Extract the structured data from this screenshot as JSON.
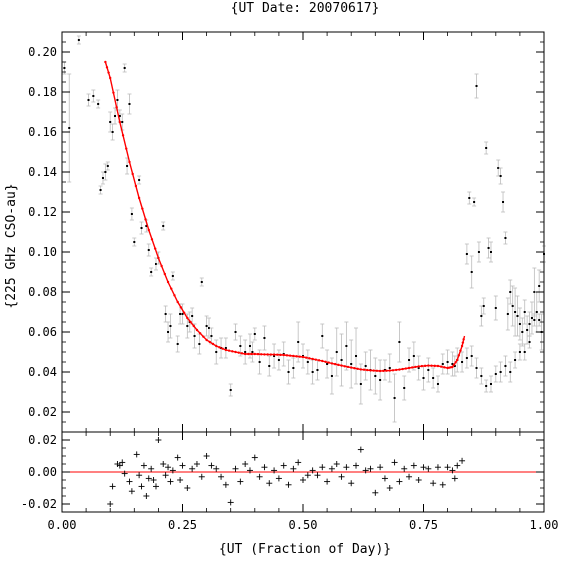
{
  "chart_data": [
    {
      "type": "scatter",
      "title": "{UT Date: 20070617}",
      "xlabel": "{UT (Fraction of Day)}",
      "ylabel": "{225 GHz CSO-au}",
      "xlim": [
        0.0,
        1.0
      ],
      "ylim": [
        0.01,
        0.21
      ],
      "xticks": [
        "0.00",
        "0.25",
        "0.50",
        "0.75",
        "1.00"
      ],
      "yticks": [
        "0.02",
        "0.04",
        "0.06",
        "0.08",
        "0.10",
        "0.12",
        "0.14",
        "0.16",
        "0.18",
        "0.20"
      ],
      "grid": false,
      "series": [
        {
          "kind": "points-with-errorbars",
          "color": "#000000",
          "errorbar_color": "#bbbbbb",
          "x": [
            0.005,
            0.015,
            0.035,
            0.055,
            0.065,
            0.075,
            0.08,
            0.085,
            0.09,
            0.095,
            0.1,
            0.105,
            0.11,
            0.115,
            0.12,
            0.125,
            0.13,
            0.135,
            0.14,
            0.145,
            0.15,
            0.16,
            0.165,
            0.175,
            0.18,
            0.185,
            0.195,
            0.2,
            0.21,
            0.215,
            0.22,
            0.225,
            0.23,
            0.24,
            0.245,
            0.25,
            0.26,
            0.265,
            0.27,
            0.275,
            0.285,
            0.29,
            0.3,
            0.305,
            0.31,
            0.32,
            0.33,
            0.34,
            0.35,
            0.36,
            0.37,
            0.38,
            0.39,
            0.395,
            0.4,
            0.41,
            0.42,
            0.43,
            0.44,
            0.45,
            0.46,
            0.47,
            0.48,
            0.49,
            0.5,
            0.51,
            0.52,
            0.53,
            0.54,
            0.55,
            0.56,
            0.57,
            0.58,
            0.59,
            0.6,
            0.61,
            0.62,
            0.63,
            0.64,
            0.65,
            0.66,
            0.67,
            0.68,
            0.69,
            0.7,
            0.71,
            0.72,
            0.73,
            0.74,
            0.75,
            0.76,
            0.77,
            0.78,
            0.79,
            0.8,
            0.81,
            0.815,
            0.82,
            0.83,
            0.84,
            0.85,
            0.86,
            0.87,
            0.88,
            0.89,
            0.9,
            0.91,
            0.92,
            0.93,
            0.94,
            0.95,
            0.96,
            0.97,
            0.98,
            0.99,
            1.0
          ],
          "y": [
            0.192,
            0.162,
            0.206,
            0.176,
            0.178,
            0.174,
            0.131,
            0.137,
            0.14,
            0.143,
            0.165,
            0.16,
            0.168,
            0.176,
            0.168,
            0.165,
            0.192,
            0.143,
            0.174,
            0.119,
            0.105,
            0.136,
            0.112,
            0.113,
            0.101,
            0.09,
            0.094,
            0.097,
            0.113,
            0.069,
            0.06,
            0.063,
            0.088,
            0.054,
            0.069,
            0.069,
            0.063,
            0.065,
            0.068,
            0.058,
            0.054,
            0.085,
            0.063,
            0.062,
            0.058,
            0.05,
            0.052,
            0.052,
            0.031,
            0.06,
            0.053,
            0.05,
            0.053,
            0.05,
            0.059,
            0.045,
            0.057,
            0.043,
            0.048,
            0.046,
            0.049,
            0.04,
            0.042,
            0.055,
            0.048,
            0.045,
            0.04,
            0.041,
            0.058,
            0.044,
            0.038,
            0.05,
            0.046,
            0.053,
            0.044,
            0.048,
            0.034,
            0.043,
            0.041,
            0.038,
            0.036,
            0.041,
            0.042,
            0.027,
            0.055,
            0.032,
            0.046,
            0.048,
            0.042,
            0.037,
            0.041,
            0.037,
            0.034,
            0.044,
            0.045,
            0.044,
            0.043,
            0.046,
            0.045,
            0.047,
            0.048,
            0.042,
            0.038,
            0.033,
            0.034,
            0.039,
            0.04,
            0.043,
            0.04,
            0.046,
            0.05,
            0.05,
            0.055,
            0.066,
            0.066,
            0.099
          ],
          "yerr": [
            0.003,
            0.027,
            0.002,
            0.003,
            0.003,
            0.002,
            0.002,
            0.003,
            0.004,
            0.002,
            0.005,
            0.004,
            0.004,
            0.005,
            0.003,
            0.004,
            0.002,
            0.004,
            0.005,
            0.003,
            0.002,
            0.002,
            0.003,
            0.003,
            0.003,
            0.002,
            0.003,
            0.003,
            0.002,
            0.004,
            0.005,
            0.006,
            0.002,
            0.004,
            0.005,
            0.005,
            0.006,
            0.005,
            0.004,
            0.006,
            0.005,
            0.002,
            0.005,
            0.005,
            0.004,
            0.006,
            0.005,
            0.005,
            0.003,
            0.004,
            0.005,
            0.006,
            0.006,
            0.005,
            0.003,
            0.006,
            0.006,
            0.005,
            0.006,
            0.005,
            0.006,
            0.006,
            0.005,
            0.01,
            0.006,
            0.006,
            0.006,
            0.005,
            0.006,
            0.007,
            0.009,
            0.012,
            0.013,
            0.012,
            0.012,
            0.014,
            0.01,
            0.007,
            0.01,
            0.009,
            0.01,
            0.005,
            0.007,
            0.012,
            0.01,
            0.006,
            0.006,
            0.007,
            0.006,
            0.006,
            0.006,
            0.005,
            0.004,
            0.005,
            0.006,
            0.006,
            0.005,
            0.006,
            0.005,
            0.005,
            0.005,
            0.005,
            0.004,
            0.003,
            0.004,
            0.004,
            0.005,
            0.005,
            0.005,
            0.004,
            0.004,
            0.004,
            0.003,
            0.003,
            0.003,
            0.004
          ]
        },
        {
          "kind": "points-with-errorbars",
          "color": "#000000",
          "errorbar_color": "#bbbbbb",
          "x": [
            0.84,
            0.845,
            0.85,
            0.855,
            0.86,
            0.865,
            0.87,
            0.875,
            0.88,
            0.885,
            0.89,
            0.9,
            0.905,
            0.91,
            0.915,
            0.92,
            0.925,
            0.93,
            0.935,
            0.94,
            0.945,
            0.95,
            0.955,
            0.96,
            0.965,
            0.97,
            0.975,
            0.98,
            0.985,
            0.99,
            0.995
          ],
          "y": [
            0.099,
            0.127,
            0.09,
            0.125,
            0.183,
            0.1,
            0.068,
            0.073,
            0.152,
            0.102,
            0.1,
            0.072,
            0.142,
            0.138,
            0.125,
            0.107,
            0.069,
            0.08,
            0.073,
            0.07,
            0.068,
            0.064,
            0.06,
            0.07,
            0.061,
            0.064,
            0.067,
            0.08,
            0.07,
            0.083,
            0.06
          ],
          "yerr": [
            0.005,
            0.003,
            0.008,
            0.002,
            0.006,
            0.005,
            0.005,
            0.004,
            0.003,
            0.005,
            0.005,
            0.006,
            0.004,
            0.004,
            0.005,
            0.003,
            0.008,
            0.006,
            0.01,
            0.012,
            0.01,
            0.008,
            0.007,
            0.006,
            0.007,
            0.006,
            0.008,
            0.012,
            0.01,
            0.008,
            0.009
          ]
        },
        {
          "kind": "fit-line",
          "color": "#ff0000",
          "x": [
            0.09,
            0.1,
            0.12,
            0.14,
            0.16,
            0.18,
            0.2,
            0.22,
            0.24,
            0.26,
            0.28,
            0.3,
            0.32,
            0.34,
            0.36,
            0.38,
            0.4,
            0.42,
            0.44,
            0.46,
            0.48,
            0.5,
            0.52,
            0.54,
            0.56,
            0.58,
            0.6,
            0.62,
            0.64,
            0.66,
            0.68,
            0.7,
            0.72,
            0.74,
            0.76,
            0.78,
            0.8,
            0.81,
            0.82,
            0.83,
            0.835
          ],
          "y": [
            0.195,
            0.187,
            0.165,
            0.145,
            0.127,
            0.111,
            0.097,
            0.085,
            0.075,
            0.067,
            0.061,
            0.056,
            0.053,
            0.051,
            0.05,
            0.049,
            0.049,
            0.0488,
            0.0487,
            0.0485,
            0.048,
            0.0475,
            0.0465,
            0.0455,
            0.0443,
            0.0432,
            0.0422,
            0.0413,
            0.0408,
            0.0405,
            0.0407,
            0.0412,
            0.042,
            0.0428,
            0.0432,
            0.043,
            0.042,
            0.0425,
            0.046,
            0.053,
            0.058
          ]
        }
      ]
    },
    {
      "type": "scatter",
      "title": "",
      "xlabel": "{UT (Fraction of Day)}",
      "ylabel": "",
      "xlim": [
        0.0,
        1.0
      ],
      "ylim": [
        -0.025,
        0.025
      ],
      "xticks": [
        "0.00",
        "0.25",
        "0.50",
        "0.75",
        "1.00"
      ],
      "yticks": [
        "-0.02",
        "0.00",
        "0.02"
      ],
      "zero_line_color": "#ff0000",
      "series": [
        {
          "kind": "residual-crosses",
          "color": "#000000",
          "x": [
            0.1,
            0.105,
            0.115,
            0.12,
            0.125,
            0.13,
            0.14,
            0.145,
            0.155,
            0.16,
            0.165,
            0.17,
            0.175,
            0.18,
            0.185,
            0.19,
            0.195,
            0.2,
            0.21,
            0.215,
            0.22,
            0.225,
            0.23,
            0.24,
            0.245,
            0.25,
            0.26,
            0.27,
            0.28,
            0.29,
            0.3,
            0.31,
            0.32,
            0.33,
            0.34,
            0.35,
            0.36,
            0.37,
            0.38,
            0.39,
            0.4,
            0.41,
            0.42,
            0.43,
            0.44,
            0.45,
            0.46,
            0.47,
            0.48,
            0.49,
            0.5,
            0.51,
            0.52,
            0.53,
            0.54,
            0.55,
            0.56,
            0.57,
            0.58,
            0.59,
            0.6,
            0.61,
            0.62,
            0.63,
            0.64,
            0.65,
            0.66,
            0.67,
            0.68,
            0.69,
            0.7,
            0.71,
            0.72,
            0.73,
            0.74,
            0.75,
            0.76,
            0.77,
            0.78,
            0.79,
            0.8,
            0.81,
            0.815,
            0.82,
            0.83
          ],
          "y": [
            -0.02,
            -0.009,
            0.005,
            0.004,
            0.006,
            -0.001,
            -0.006,
            -0.012,
            0.011,
            -0.002,
            -0.009,
            0.004,
            -0.015,
            -0.004,
            0.002,
            -0.005,
            -0.009,
            0.02,
            0.005,
            -0.002,
            0.003,
            -0.006,
            0.001,
            0.009,
            -0.005,
            0.004,
            -0.01,
            0.002,
            0.005,
            -0.003,
            0.01,
            0.004,
            0.002,
            -0.003,
            -0.008,
            -0.019,
            0.002,
            -0.006,
            0.005,
            0.001,
            0.009,
            -0.003,
            0.003,
            -0.007,
            0.001,
            -0.004,
            0.004,
            -0.008,
            0.002,
            0.006,
            -0.005,
            -0.002,
            0.001,
            -0.002,
            0.003,
            -0.006,
            0.002,
            0.005,
            -0.003,
            0.003,
            -0.007,
            0.004,
            0.014,
            0.001,
            0.002,
            -0.013,
            0.003,
            -0.004,
            -0.01,
            0.006,
            -0.006,
            0.002,
            -0.003,
            0.004,
            -0.005,
            0.003,
            0.002,
            -0.007,
            0.003,
            -0.008,
            0.003,
            0.001,
            -0.004,
            0.004,
            0.007
          ]
        }
      ]
    }
  ]
}
